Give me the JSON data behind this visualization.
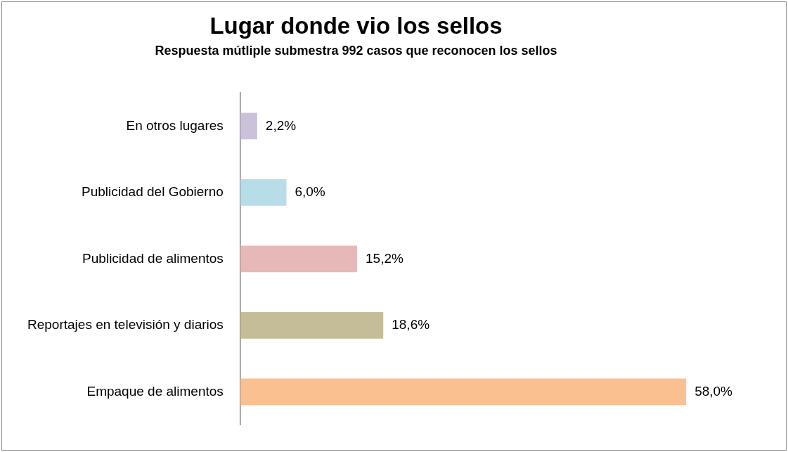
{
  "chart_data": {
    "type": "bar",
    "orientation": "horizontal",
    "title": "Lugar donde vio los sellos",
    "subtitle": "Respuesta mútliple submestra 992 casos que reconocen los sellos",
    "categories": [
      "En otros lugares",
      "Publicidad del Gobierno",
      "Publicidad de alimentos",
      "Reportajes en televisión y diarios",
      "Empaque de alimentos"
    ],
    "values": [
      2.2,
      6.0,
      15.2,
      18.6,
      58.0
    ],
    "value_labels": [
      "2,2%",
      "6,0%",
      "15,2%",
      "18,6%",
      "58,0%"
    ],
    "colors": [
      "#ccc1da",
      "#b7dee8",
      "#e6b9b8",
      "#c4bd97",
      "#fac090"
    ],
    "legend": false
  }
}
